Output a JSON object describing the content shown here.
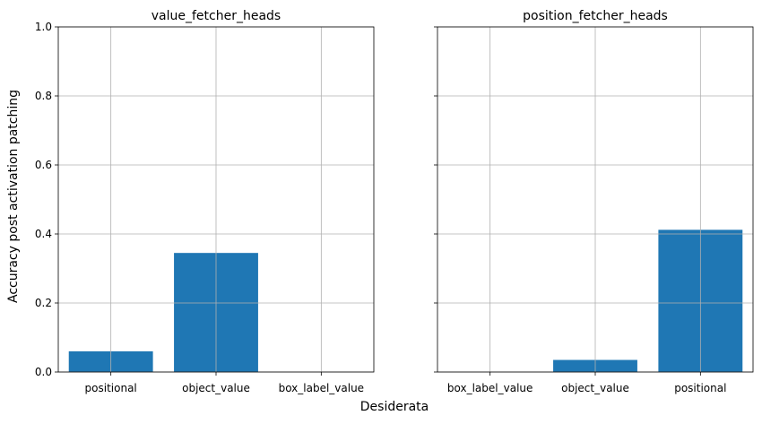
{
  "figure": {
    "xlabel": "Desiderata",
    "ylabel": "Accuracy post activation patching"
  },
  "colors": {
    "bar": "#1f77b4",
    "grid": "#b0b0b0",
    "axis": "#000000"
  },
  "chart_data": [
    {
      "type": "bar",
      "title": "value_fetcher_heads",
      "categories": [
        "positional",
        "object_value",
        "box_label_value"
      ],
      "values": [
        0.06,
        0.345,
        0.0
      ],
      "ylim": [
        0,
        1.0
      ],
      "yticks": [
        "0.0",
        "0.2",
        "0.4",
        "0.6",
        "0.8",
        "1.0"
      ],
      "grid": true
    },
    {
      "type": "bar",
      "title": "position_fetcher_heads",
      "categories": [
        "box_label_value",
        "object_value",
        "positional"
      ],
      "values": [
        0.0,
        0.035,
        0.412
      ],
      "ylim": [
        0,
        1.0
      ],
      "grid": true,
      "shared_y": true
    }
  ]
}
